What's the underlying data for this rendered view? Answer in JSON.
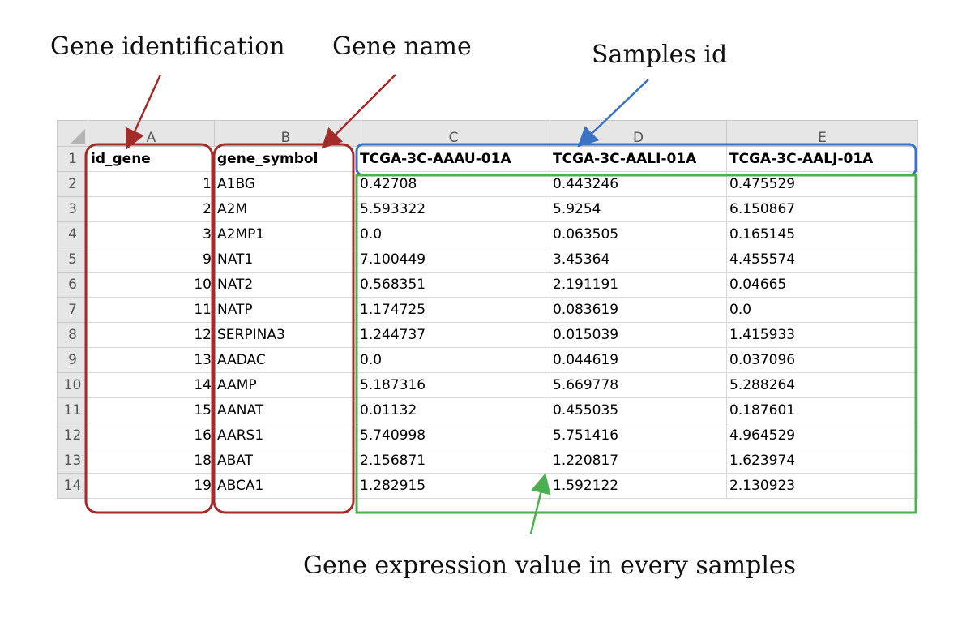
{
  "labels": {
    "gene_identification": "Gene identification",
    "gene_name": "Gene name",
    "samples_id": "Samples id",
    "expression": "Gene expression value in every samples"
  },
  "sheet": {
    "column_letters": [
      "A",
      "B",
      "C",
      "D",
      "E"
    ],
    "row_numbers": [
      "1",
      "2",
      "3",
      "4",
      "5",
      "6",
      "7",
      "8",
      "9",
      "10",
      "11",
      "12",
      "13",
      "14"
    ],
    "headers": [
      "id_gene",
      "gene_symbol",
      "TCGA-3C-AAAU-01A",
      "TCGA-3C-AALI-01A",
      "TCGA-3C-AALJ-01A"
    ],
    "rows": [
      [
        "1",
        "A1BG",
        "0.42708",
        "0.443246",
        "0.475529"
      ],
      [
        "2",
        "A2M",
        "5.593322",
        "5.9254",
        "6.150867"
      ],
      [
        "3",
        "A2MP1",
        "0.0",
        "0.063505",
        "0.165145"
      ],
      [
        "9",
        "NAT1",
        "7.100449",
        "3.45364",
        "4.455574"
      ],
      [
        "10",
        "NAT2",
        "0.568351",
        "2.191191",
        "0.04665"
      ],
      [
        "11",
        "NATP",
        "1.174725",
        "0.083619",
        "0.0"
      ],
      [
        "12",
        "SERPINA3",
        "1.244737",
        "0.015039",
        "1.415933"
      ],
      [
        "13",
        "AADAC",
        "0.0",
        "0.044619",
        "0.037096"
      ],
      [
        "14",
        "AAMP",
        "5.187316",
        "5.669778",
        "5.288264"
      ],
      [
        "15",
        "AANAT",
        "0.01132",
        "0.455035",
        "0.187601"
      ],
      [
        "16",
        "AARS1",
        "5.740998",
        "5.751416",
        "4.964529"
      ],
      [
        "18",
        "ABAT",
        "2.156871",
        "1.220817",
        "1.623974"
      ],
      [
        "19",
        "ABCA1",
        "1.282915",
        "1.592122",
        "2.130923"
      ]
    ]
  },
  "colors": {
    "gene_box": "#a52a2a",
    "samples_box": "#3a72c4",
    "expression_box": "#4caf50"
  }
}
